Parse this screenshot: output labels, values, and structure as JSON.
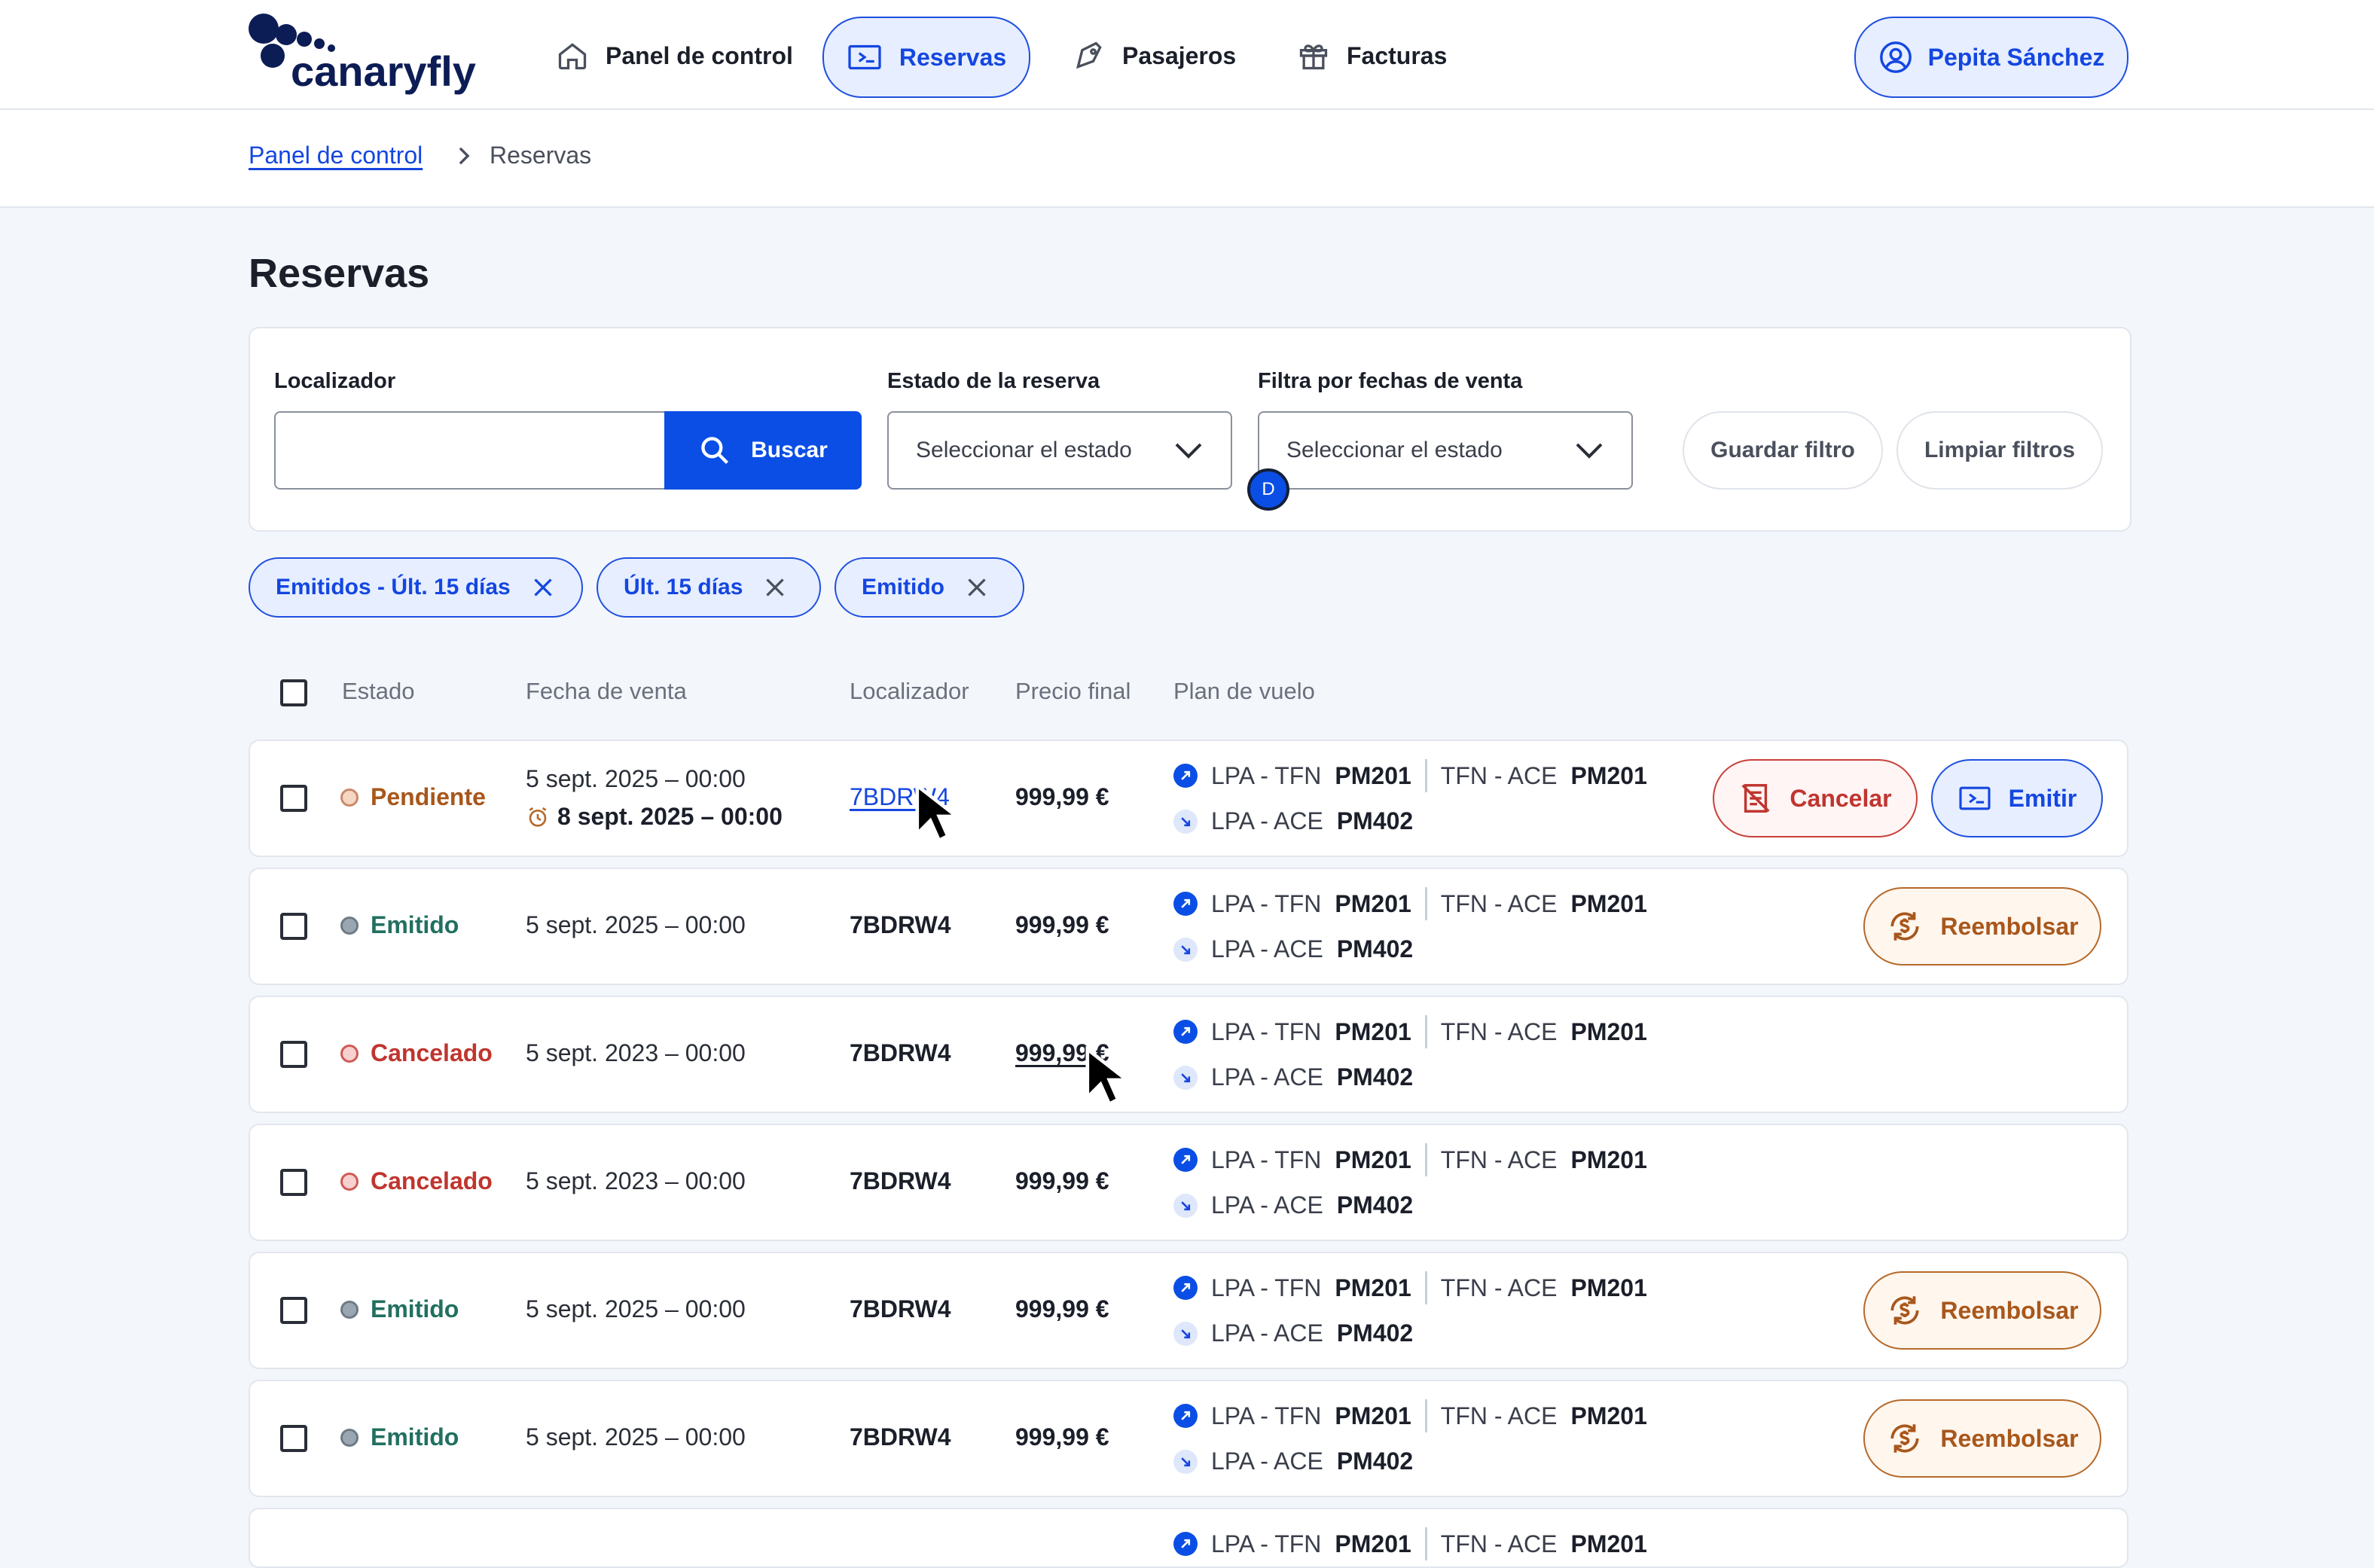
{
  "header": {
    "logo": "canaryfly",
    "nav": [
      {
        "label": "Panel de control",
        "icon": "home-icon"
      },
      {
        "label": "Reservas",
        "icon": "ticket-icon",
        "active": true
      },
      {
        "label": "Pasajeros",
        "icon": "tag-icon"
      },
      {
        "label": "Facturas",
        "icon": "gift-icon"
      }
    ],
    "user": "Pepita Sánchez"
  },
  "breadcrumb": {
    "link": "Panel de control",
    "current": "Reservas"
  },
  "page": {
    "title": "Reservas"
  },
  "filters": {
    "locator_label": "Localizador",
    "locator_value": "",
    "search_button": "Buscar",
    "status_label": "Estado de la reserva",
    "status_placeholder": "Seleccionar el estado",
    "dates_label": "Filtra por fechas de venta",
    "dates_placeholder": "Seleccionar el estado",
    "save_button": "Guardar filtro",
    "clear_button": "Limpiar filtros",
    "chips": [
      "Emitidos - Últ. 15 días",
      "Últ. 15 días",
      "Emitido"
    ]
  },
  "table": {
    "headers": [
      "Estado",
      "Fecha de venta",
      "Localizador",
      "Precio final",
      "Plan de vuelo"
    ],
    "rows": [
      {
        "status": "Pendiente",
        "date": "5 sept. 2025 – 00:00",
        "deadline": "8 sept. 2025 – 00:00",
        "locator": "7BDRW4",
        "price": "999,99 €",
        "leg1_route": "LPA - TFN",
        "leg1_flight": "PM201",
        "leg2_route": "TFN - ACE",
        "leg2_flight": "PM201",
        "leg3_route": "LPA - ACE",
        "leg3_flight": "PM402",
        "action1": "Cancelar",
        "action2": "Emitir"
      },
      {
        "status": "Emitido",
        "date": "5 sept. 2025 – 00:00",
        "locator": "7BDRW4",
        "price": "999,99 €",
        "leg1_route": "LPA - TFN",
        "leg1_flight": "PM201",
        "leg2_route": "TFN - ACE",
        "leg2_flight": "PM201",
        "leg3_route": "LPA - ACE",
        "leg3_flight": "PM402",
        "action1": "Reembolsar"
      },
      {
        "status": "Cancelado",
        "date": "5 sept. 2023 – 00:00",
        "locator": "7BDRW4",
        "price": "999,99 €",
        "leg1_route": "LPA - TFN",
        "leg1_flight": "PM201",
        "leg2_route": "TFN - ACE",
        "leg2_flight": "PM201",
        "leg3_route": "LPA - ACE",
        "leg3_flight": "PM402"
      },
      {
        "status": "Cancelado",
        "date": "5 sept. 2023 – 00:00",
        "locator": "7BDRW4",
        "price": "999,99 €",
        "leg1_route": "LPA - TFN",
        "leg1_flight": "PM201",
        "leg2_route": "TFN - ACE",
        "leg2_flight": "PM201",
        "leg3_route": "LPA - ACE",
        "leg3_flight": "PM402"
      },
      {
        "status": "Emitido",
        "date": "5 sept. 2025 – 00:00",
        "locator": "7BDRW4",
        "price": "999,99 €",
        "leg1_route": "LPA - TFN",
        "leg1_flight": "PM201",
        "leg2_route": "TFN - ACE",
        "leg2_flight": "PM201",
        "leg3_route": "LPA - ACE",
        "leg3_flight": "PM402",
        "action1": "Reembolsar"
      },
      {
        "status": "Emitido",
        "date": "5 sept. 2025 – 00:00",
        "locator": "7BDRW4",
        "price": "999,99 €",
        "leg1_route": "LPA - TFN",
        "leg1_flight": "PM201",
        "leg2_route": "TFN - ACE",
        "leg2_flight": "PM201",
        "leg3_route": "LPA - ACE",
        "leg3_flight": "PM402",
        "action1": "Reembolsar"
      },
      {
        "leg1_route": "LPA - TFN",
        "leg1_flight": "PM201",
        "leg2_route": "TFN - ACE",
        "leg2_flight": "PM201"
      }
    ]
  },
  "marker": "D",
  "colors": {
    "primary": "#0a4ee6",
    "pending": "#a8571b",
    "issued": "#217060",
    "cancelled": "#c0352f"
  }
}
